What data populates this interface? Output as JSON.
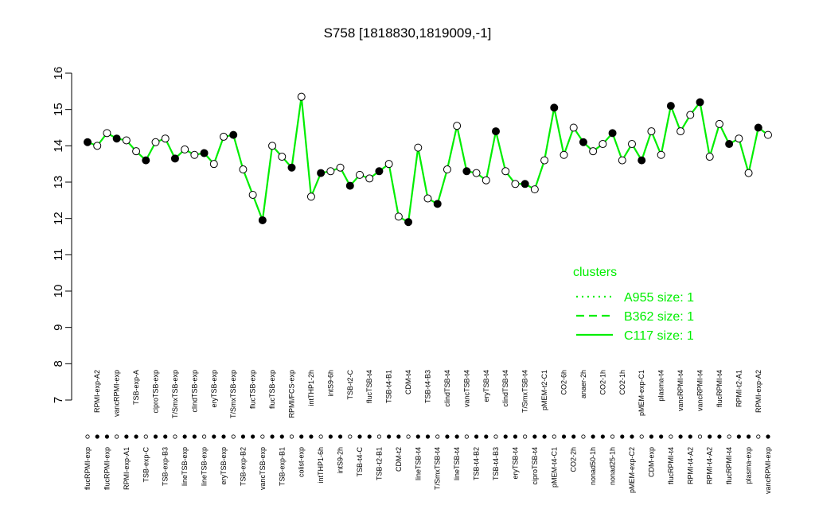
{
  "chart_data": {
    "type": "line",
    "title": "S758 [1818830,1819009,-1]",
    "categories": [
      "flucRPMI-exp",
      "RPMI-exp-A2",
      "flucRPMI-exp",
      "vancRPMI-exp",
      "RPMI-exp-A1",
      "TSB-exp-A",
      "TSB-exp-C",
      "ciproTSB-exp",
      "TSB-exp-B3",
      "T/SmxTSB-exp",
      "lineTSB-exp",
      "clindTSB-exp",
      "lineTSB-exp",
      "eryTSB-exp",
      "eryTSB-exp",
      "T/SmxTSB-exp",
      "TSB-exp-B2",
      "flucTSB-exp",
      "vancTSB-exp",
      "flucTSB-exp",
      "TSB-exp-B1",
      "RPMI/FCS-exp",
      "colist-exp",
      "intTHP1-2h",
      "intTHP1-6h",
      "intS9-6h",
      "intS9-2h",
      "TSB-t2-C",
      "TSB-t4-C",
      "flucTSB-t4",
      "TSB-t2-B1",
      "TSB-t4-B1",
      "CDM-t2",
      "CDM-t4",
      "lineTSB-t4",
      "TSB-t4-B3",
      "T/SmxTSB-t4",
      "clindTSB-t4",
      "lineTSB-t4",
      "vancTSB-t4",
      "TSB-t4-B2",
      "eryTSB-t4",
      "TSB-t4-B3",
      "clindTSB-t4",
      "eryTSB-t4",
      "T/SmxTSB-t4",
      "ciproTSB-t4",
      "pMEM-t2-C1",
      "pMEM-t4-C1",
      "CO2-6h",
      "CO2-2h",
      "anaer-2h",
      "nonad50-1h",
      "CO2-1h",
      "nonad25-1h",
      "CO2-1h",
      "pMEM-exp-C2",
      "pMEM-exp-C1",
      "CDM-exp",
      "plasma-t4",
      "flucRPMI-t4",
      "vancRPMI-t4",
      "RPMI-t4-A2",
      "vancRPMI-t4",
      "RPMI-t4-A2",
      "flucRPMI-t4",
      "flucRPMI-t4",
      "RPMI-t2-A1",
      "plasma-exp",
      "RPMI-exp-A2",
      "vancRPMI-exp"
    ],
    "series": [
      {
        "name": "C117 size: 1",
        "color": "#00ee00",
        "values": [
          14.1,
          14.0,
          14.35,
          14.2,
          14.15,
          13.85,
          13.6,
          14.1,
          14.2,
          13.65,
          13.9,
          13.75,
          13.8,
          13.5,
          14.25,
          14.3,
          13.35,
          12.65,
          11.95,
          14.0,
          13.7,
          13.4,
          15.35,
          12.6,
          13.25,
          13.3,
          13.4,
          12.9,
          13.2,
          13.1,
          13.3,
          13.5,
          12.05,
          11.9,
          13.95,
          12.55,
          12.4,
          13.35,
          14.55,
          13.3,
          13.25,
          13.05,
          14.4,
          13.3,
          12.95,
          12.95,
          12.8,
          13.6,
          15.05,
          13.75,
          14.5,
          14.1,
          13.85,
          14.05,
          14.35,
          13.6,
          14.05,
          13.6,
          14.4,
          13.75,
          15.1,
          14.4,
          14.85,
          15.2,
          13.7,
          14.6,
          14.05,
          14.2,
          13.25,
          14.5,
          14.3
        ]
      }
    ],
    "ylim": [
      7,
      16
    ],
    "yticks": [
      7,
      8,
      9,
      10,
      11,
      12,
      13,
      14,
      15,
      16
    ],
    "legend": {
      "title": "clusters",
      "entries": [
        {
          "label": "A955 size: 1",
          "style": "dotted"
        },
        {
          "label": "B362 size: 1",
          "style": "dashed"
        },
        {
          "label": "C117 size: 1",
          "style": "solid"
        }
      ]
    }
  }
}
